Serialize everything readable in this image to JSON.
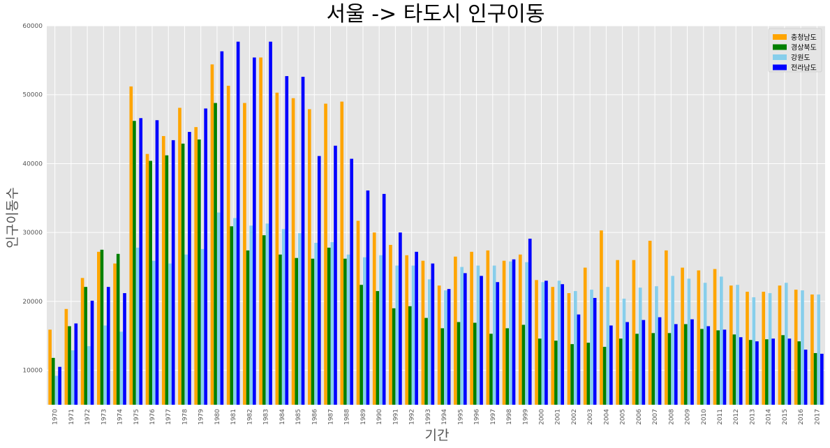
{
  "chart_data": {
    "type": "bar",
    "title": "서울 -> 타도시 인구이동",
    "xlabel": "기간",
    "ylabel": "인구이동수",
    "ylim": [
      5000,
      60000
    ],
    "yticks": [
      "10000",
      "20000",
      "30000",
      "40000",
      "50000",
      "60000"
    ],
    "grid": true,
    "legend_position": "top-right",
    "categories": [
      "1970",
      "1971",
      "1972",
      "1973",
      "1974",
      "1975",
      "1976",
      "1977",
      "1978",
      "1979",
      "1980",
      "1981",
      "1982",
      "1983",
      "1984",
      "1985",
      "1986",
      "1987",
      "1988",
      "1989",
      "1990",
      "1991",
      "1992",
      "1993",
      "1994",
      "1995",
      "1996",
      "1997",
      "1998",
      "1999",
      "2000",
      "2001",
      "2002",
      "2003",
      "2004",
      "2005",
      "2006",
      "2007",
      "2008",
      "2009",
      "2010",
      "2011",
      "2012",
      "2013",
      "2014",
      "2015",
      "2016",
      "2017"
    ],
    "series": [
      {
        "name": "충청남도",
        "color": "#FFA500",
        "values": [
          15900,
          18900,
          23400,
          27200,
          25500,
          51200,
          41400,
          44000,
          48100,
          45300,
          54400,
          51300,
          48800,
          55400,
          50300,
          49500,
          47900,
          48700,
          49000,
          31700,
          30000,
          28200,
          26700,
          25900,
          22300,
          26500,
          27200,
          27400,
          25900,
          26800,
          23100,
          22100,
          21200,
          24900,
          30300,
          26000,
          26000,
          28800,
          27400,
          24900,
          24500,
          24700,
          22300,
          21400,
          21400,
          22300,
          21700,
          21000
        ]
      },
      {
        "name": "경상북도",
        "color": "#008000",
        "values": [
          11800,
          16400,
          22100,
          27500,
          26900,
          46200,
          40400,
          41200,
          42900,
          43500,
          48800,
          30900,
          27400,
          29600,
          26800,
          26300,
          26200,
          27800,
          26200,
          22400,
          21500,
          19000,
          19300,
          17600,
          16100,
          17000,
          16900,
          15300,
          16100,
          16600,
          14600,
          14300,
          13800,
          14000,
          13400,
          14600,
          15300,
          15400,
          15400,
          16700,
          16000,
          15800,
          15200,
          14400,
          14500,
          15100,
          14200,
          12500
        ]
      },
      {
        "name": "강원도",
        "color": "#87CEEB",
        "values": [
          9200,
          12900,
          13500,
          16500,
          15600,
          27800,
          25900,
          25500,
          26800,
          27600,
          32900,
          32100,
          31000,
          31300,
          30500,
          29900,
          28500,
          28600,
          26800,
          26400,
          26700,
          25200,
          25200,
          23200,
          21600,
          25000,
          25200,
          25200,
          25800,
          25700,
          22800,
          23000,
          21500,
          21700,
          22100,
          20400,
          22000,
          22200,
          23700,
          23300,
          22700,
          23600,
          22400,
          20600,
          21200,
          22700,
          21600,
          21000
        ]
      },
      {
        "name": "전라남도",
        "color": "#0000FF",
        "values": [
          10500,
          16800,
          20100,
          22100,
          21200,
          46600,
          46300,
          43400,
          44600,
          48000,
          56300,
          57700,
          55400,
          57700,
          52700,
          52600,
          41100,
          42600,
          40700,
          36100,
          35600,
          30000,
          27200,
          25500,
          21800,
          24100,
          23700,
          22800,
          26100,
          29100,
          23000,
          22500,
          18100,
          20500,
          16500,
          17000,
          17300,
          17700,
          16700,
          17400,
          16400,
          15900,
          14800,
          14200,
          14600,
          14600,
          13000,
          12400
        ]
      }
    ]
  }
}
